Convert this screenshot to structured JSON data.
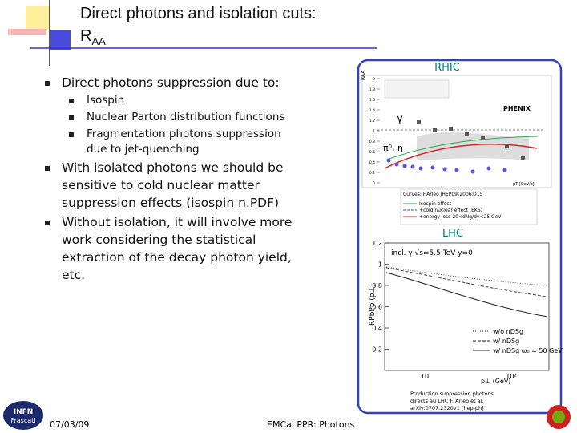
{
  "header": {
    "title": "Direct photons and isolation cuts:",
    "subtitle": "R",
    "subtitle_sub": "AA"
  },
  "bullets": [
    {
      "text": "Direct photons suppression due to:",
      "items": [
        "Isospin",
        "Nuclear Parton distribution functions",
        "Fragmentation photons suppression due to jet-quenching"
      ]
    },
    {
      "text": "With isolated photons we should be sensitive to cold nuclear matter suppression effects (isospin n.PDF)"
    },
    {
      "text": "Without isolation, it will involve more work considering the statistical extraction of the decay photon yield, etc."
    }
  ],
  "figures": {
    "rhic": {
      "label": "RHIC",
      "ylabel": "RAA",
      "yticks": [
        0,
        0.2,
        0.4,
        0.6,
        0.8,
        1,
        1.2,
        1.4,
        1.6,
        1.8,
        2
      ],
      "xlabel": "pT [GeV/c]",
      "gamma": "γ",
      "pion": "π⁰, η",
      "experiment": "PHENIX",
      "legend": [
        "Curves: F.Arleo JHEP09(2006)015",
        "Isospin effect",
        "+cold nuclear effect (EKS)",
        "+energy loss 20<dNg/dy<25 GeV"
      ]
    },
    "lhc": {
      "label": "LHC",
      "title": "incl. γ  √s=5.5 TeV  y=0",
      "ylabel": "RPbPb (p⊥)",
      "xlabel": "p⊥ (GeV)",
      "yticks": [
        0.2,
        0.4,
        0.6,
        0.8,
        1,
        1.2
      ],
      "xticks": [
        "10",
        "10²"
      ],
      "legend": [
        "w/o nDSg",
        "w/  nDSg",
        "w/  nDSg  ω₀ = 50 GeV"
      ]
    },
    "caption": [
      "Production suppression photons",
      "directs au LHC F. Arleo et al.",
      "arXiv:0707.2320v1 [hep-ph]"
    ]
  },
  "footer": {
    "date": "07/03/09",
    "center": "EMCal PPR: Photons",
    "logo": [
      "INFN",
      "Frascati"
    ]
  }
}
